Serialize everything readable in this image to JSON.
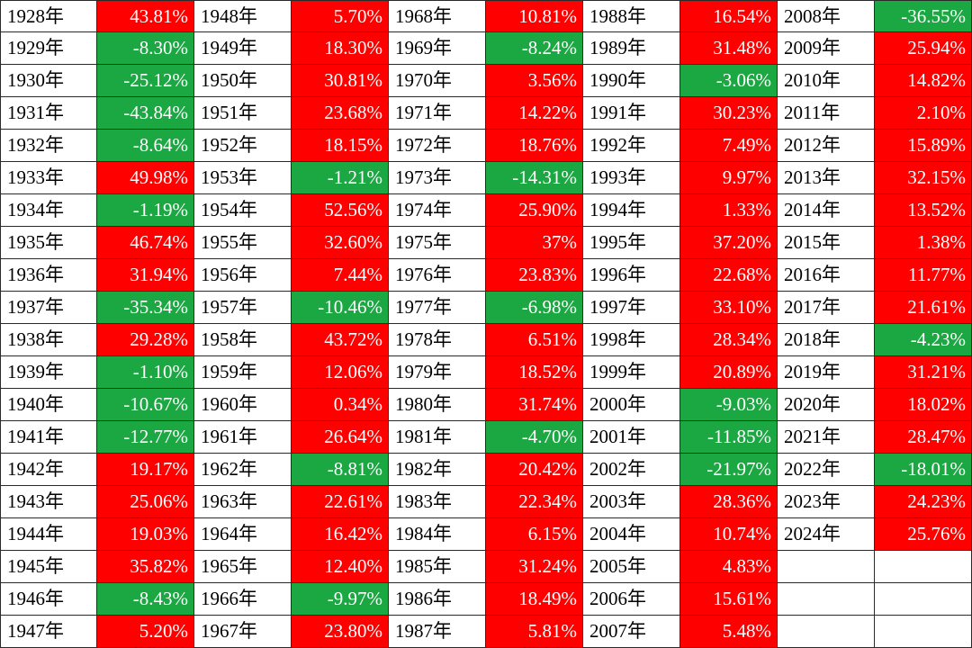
{
  "colors": {
    "positive": "#fe0000",
    "negative": "#1ba843",
    "grid": "#2a2a2a"
  },
  "chart_data": {
    "type": "table",
    "year_suffix": "年",
    "columns": [
      {
        "years": [
          "1928",
          "1929",
          "1930",
          "1931",
          "1932",
          "1933",
          "1934",
          "1935",
          "1936",
          "1937",
          "1938",
          "1939",
          "1940",
          "1941",
          "1942",
          "1943",
          "1944",
          "1945",
          "1946",
          "1947"
        ],
        "values": [
          "43.81%",
          "-8.30%",
          "-25.12%",
          "-43.84%",
          "-8.64%",
          "49.98%",
          "-1.19%",
          "46.74%",
          "31.94%",
          "-35.34%",
          "29.28%",
          "-1.10%",
          "-10.67%",
          "-12.77%",
          "19.17%",
          "25.06%",
          "19.03%",
          "35.82%",
          "-8.43%",
          "5.20%"
        ]
      },
      {
        "years": [
          "1948",
          "1949",
          "1950",
          "1951",
          "1952",
          "1953",
          "1954",
          "1955",
          "1956",
          "1957",
          "1958",
          "1959",
          "1960",
          "1961",
          "1962",
          "1963",
          "1964",
          "1965",
          "1966",
          "1967"
        ],
        "values": [
          "5.70%",
          "18.30%",
          "30.81%",
          "23.68%",
          "18.15%",
          "-1.21%",
          "52.56%",
          "32.60%",
          "7.44%",
          "-10.46%",
          "43.72%",
          "12.06%",
          "0.34%",
          "26.64%",
          "-8.81%",
          "22.61%",
          "16.42%",
          "12.40%",
          "-9.97%",
          "23.80%"
        ]
      },
      {
        "years": [
          "1968",
          "1969",
          "1970",
          "1971",
          "1972",
          "1973",
          "1974",
          "1975",
          "1976",
          "1977",
          "1978",
          "1979",
          "1980",
          "1981",
          "1982",
          "1983",
          "1984",
          "1985",
          "1986",
          "1987"
        ],
        "values": [
          "10.81%",
          "-8.24%",
          "3.56%",
          "14.22%",
          "18.76%",
          "-14.31%",
          "25.90%",
          "37%",
          "23.83%",
          "-6.98%",
          "6.51%",
          "18.52%",
          "31.74%",
          "-4.70%",
          "20.42%",
          "22.34%",
          "6.15%",
          "31.24%",
          "18.49%",
          "5.81%"
        ]
      },
      {
        "years": [
          "1988",
          "1989",
          "1990",
          "1991",
          "1992",
          "1993",
          "1994",
          "1995",
          "1996",
          "1997",
          "1998",
          "1999",
          "2000",
          "2001",
          "2002",
          "2003",
          "2004",
          "2005",
          "2006",
          "2007"
        ],
        "values": [
          "16.54%",
          "31.48%",
          "-3.06%",
          "30.23%",
          "7.49%",
          "9.97%",
          "1.33%",
          "37.20%",
          "22.68%",
          "33.10%",
          "28.34%",
          "20.89%",
          "-9.03%",
          "-11.85%",
          "-21.97%",
          "28.36%",
          "10.74%",
          "4.83%",
          "15.61%",
          "5.48%"
        ]
      },
      {
        "years": [
          "2008",
          "2009",
          "2010",
          "2011",
          "2012",
          "2013",
          "2014",
          "2015",
          "2016",
          "2017",
          "2018",
          "2019",
          "2020",
          "2021",
          "2022",
          "2023",
          "2024"
        ],
        "values": [
          "-36.55%",
          "25.94%",
          "14.82%",
          "2.10%",
          "15.89%",
          "32.15%",
          "13.52%",
          "1.38%",
          "11.77%",
          "21.61%",
          "-4.23%",
          "31.21%",
          "18.02%",
          "28.47%",
          "-18.01%",
          "24.23%",
          "25.76%"
        ]
      }
    ]
  }
}
